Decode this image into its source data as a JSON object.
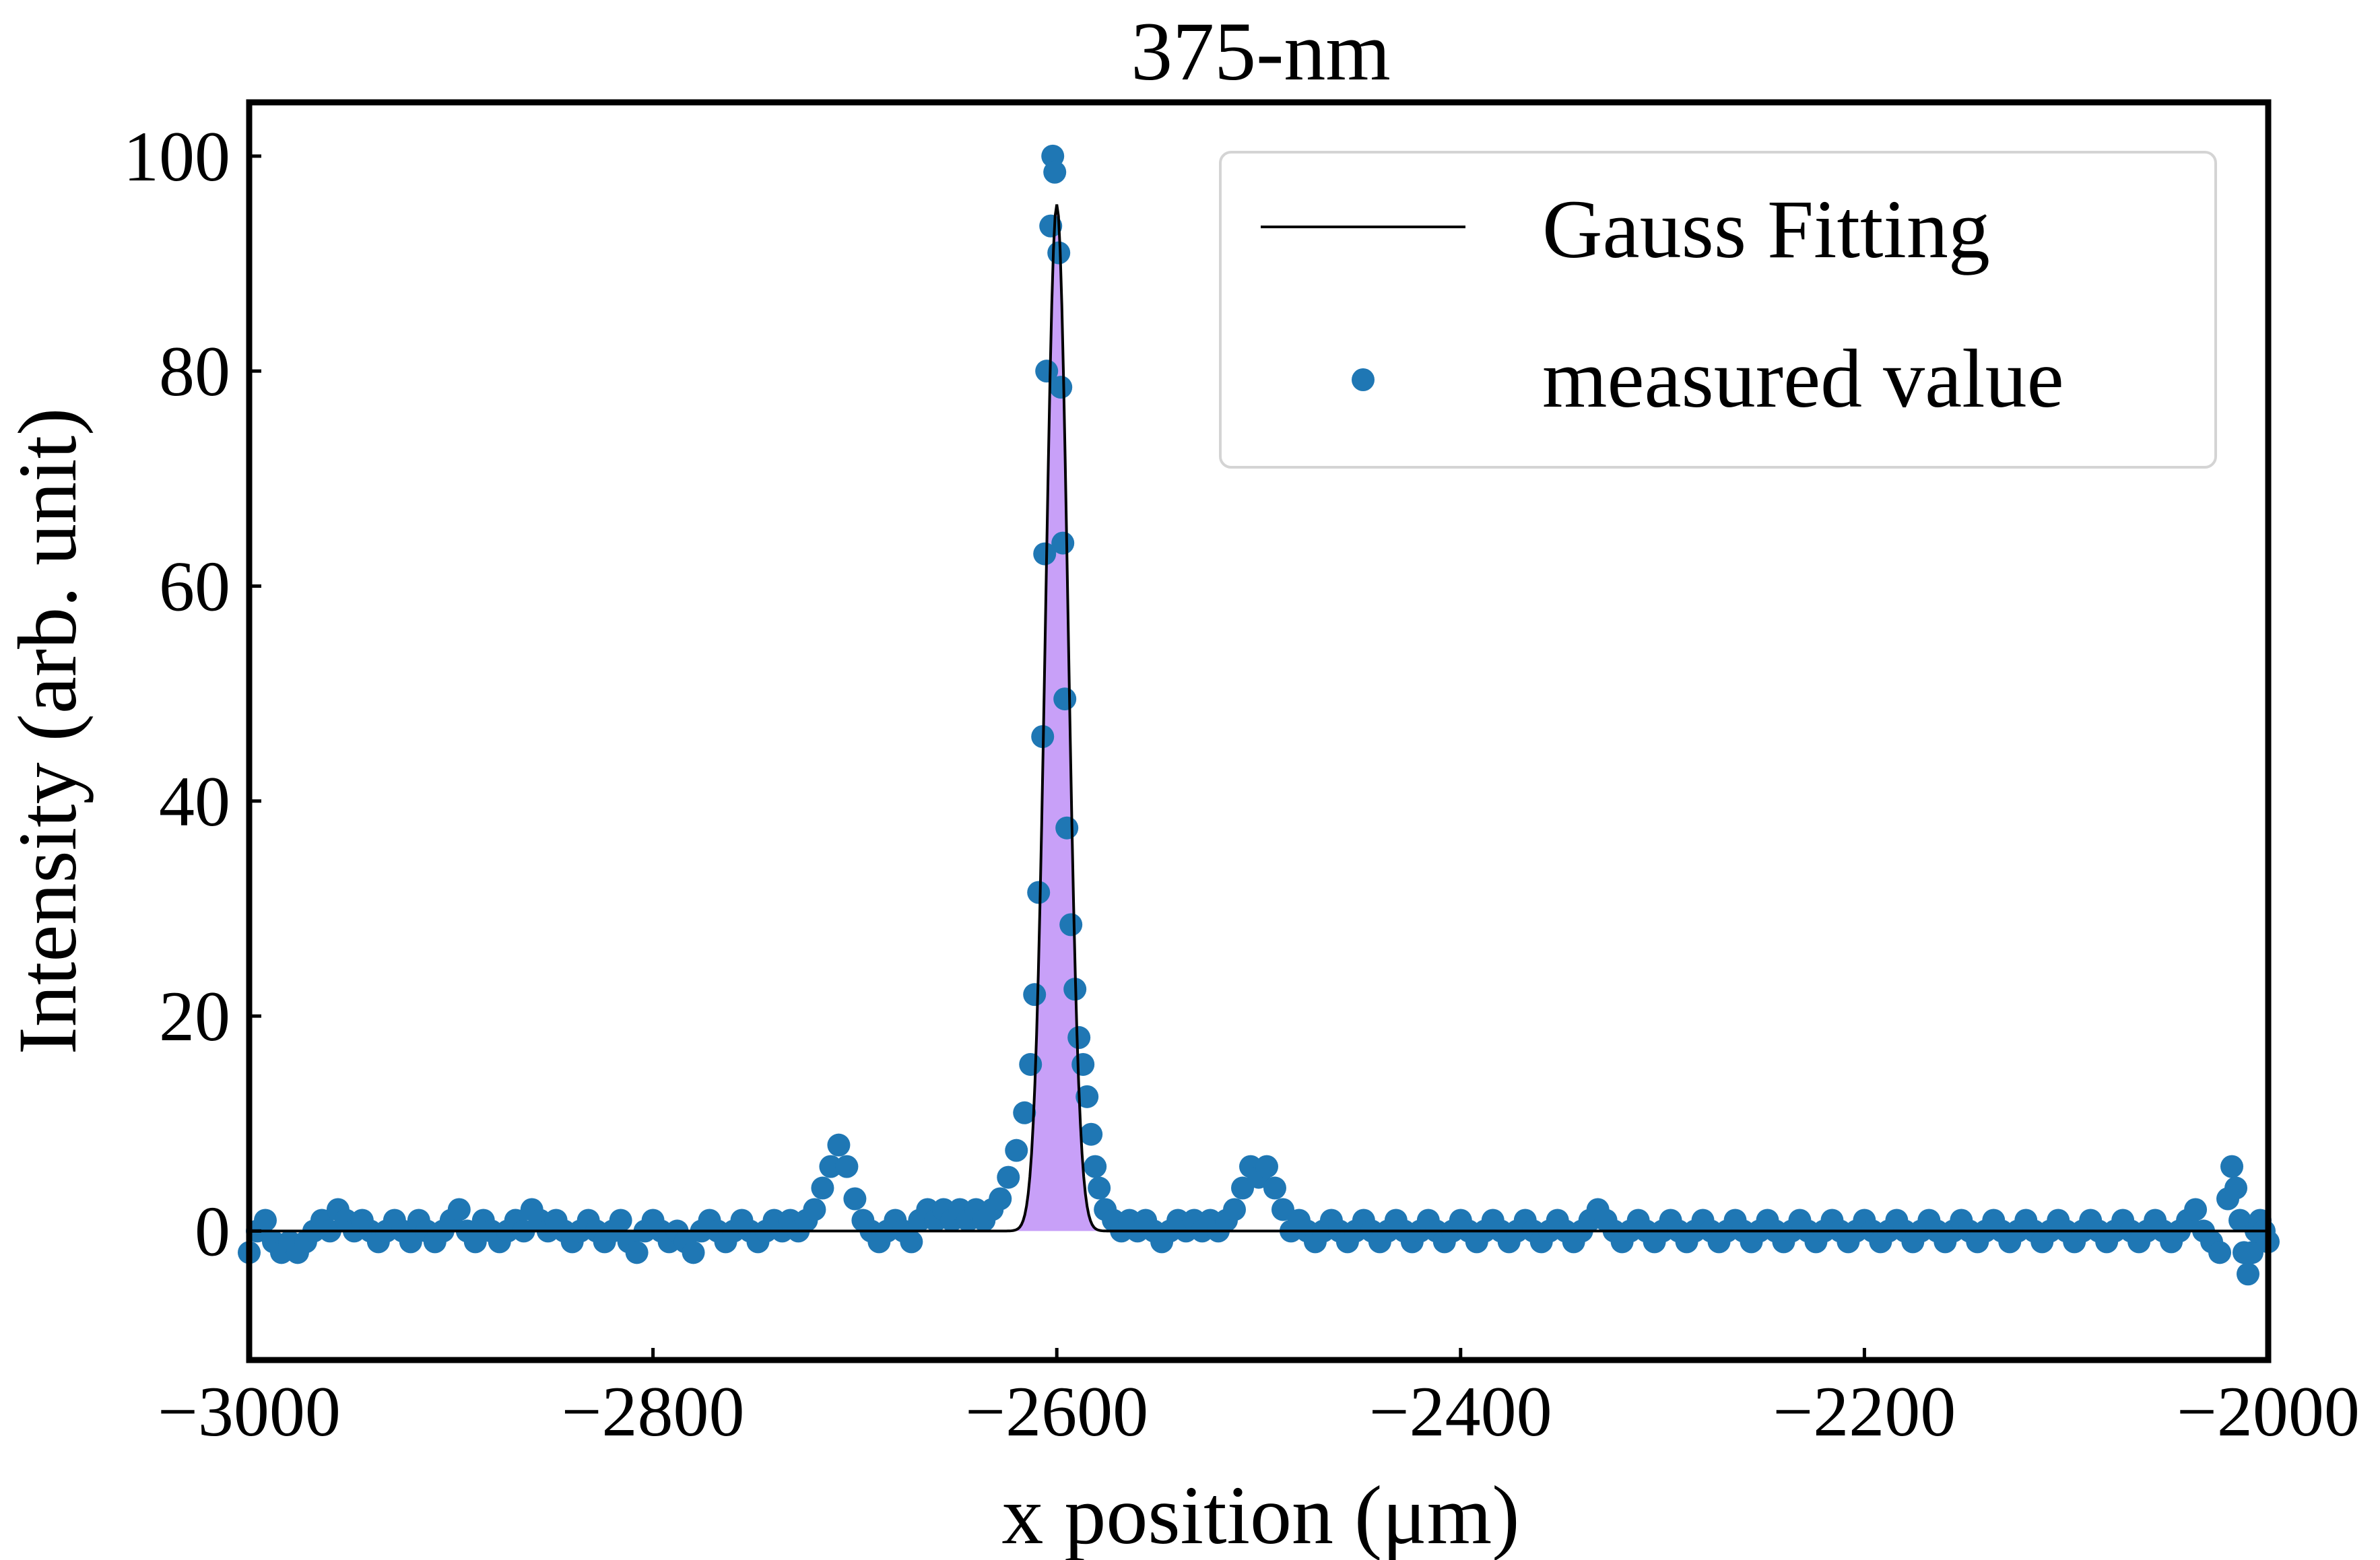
{
  "chart_data": {
    "type": "scatter",
    "title": "375-nm",
    "xlabel": "x position (μm)",
    "ylabel": "Intensity (arb. unit)",
    "xlim": [
      -3000,
      -2000
    ],
    "ylim": [
      -12,
      105
    ],
    "x_ticks": [
      {
        "value": -3000,
        "label": "−3000"
      },
      {
        "value": -2800,
        "label": "−2800"
      },
      {
        "value": -2600,
        "label": "−2600"
      },
      {
        "value": -2400,
        "label": "−2400"
      },
      {
        "value": -2200,
        "label": "−2200"
      },
      {
        "value": -2000,
        "label": "−2000"
      }
    ],
    "y_ticks": [
      {
        "value": 0,
        "label": "0"
      },
      {
        "value": 20,
        "label": "20"
      },
      {
        "value": 40,
        "label": "40"
      },
      {
        "value": 60,
        "label": "60"
      },
      {
        "value": 80,
        "label": "80"
      },
      {
        "value": 100,
        "label": "100"
      }
    ],
    "grid": false,
    "legend_position": "top-right",
    "series": [
      {
        "name": "Gauss Fitting",
        "kind": "line",
        "color": "#000000",
        "fill_color": "#c8a0f8",
        "gaussian": {
          "amplitude": 95.5,
          "center": -2600,
          "sigma": 5.5
        }
      },
      {
        "name": "measured value",
        "kind": "scatter",
        "color": "#1f77b4",
        "points": [
          [
            -3000,
            -2
          ],
          [
            -2996,
            0
          ],
          [
            -2992,
            1
          ],
          [
            -2988,
            -1
          ],
          [
            -2984,
            -2
          ],
          [
            -2980,
            -1
          ],
          [
            -2976,
            -2
          ],
          [
            -2972,
            -1
          ],
          [
            -2968,
            0
          ],
          [
            -2964,
            1
          ],
          [
            -2960,
            0
          ],
          [
            -2956,
            2
          ],
          [
            -2952,
            1
          ],
          [
            -2948,
            0
          ],
          [
            -2944,
            1
          ],
          [
            -2940,
            0
          ],
          [
            -2936,
            -1
          ],
          [
            -2932,
            0
          ],
          [
            -2928,
            1
          ],
          [
            -2924,
            0
          ],
          [
            -2920,
            -1
          ],
          [
            -2916,
            1
          ],
          [
            -2912,
            0
          ],
          [
            -2908,
            -1
          ],
          [
            -2904,
            0
          ],
          [
            -2900,
            1
          ],
          [
            -2896,
            2
          ],
          [
            -2892,
            0
          ],
          [
            -2888,
            -1
          ],
          [
            -2884,
            1
          ],
          [
            -2880,
            0
          ],
          [
            -2876,
            -1
          ],
          [
            -2872,
            0
          ],
          [
            -2868,
            1
          ],
          [
            -2864,
            0
          ],
          [
            -2860,
            2
          ],
          [
            -2856,
            1
          ],
          [
            -2852,
            0
          ],
          [
            -2848,
            1
          ],
          [
            -2844,
            0
          ],
          [
            -2840,
            -1
          ],
          [
            -2836,
            0
          ],
          [
            -2832,
            1
          ],
          [
            -2828,
            0
          ],
          [
            -2824,
            -1
          ],
          [
            -2820,
            0
          ],
          [
            -2816,
            1
          ],
          [
            -2812,
            -1
          ],
          [
            -2808,
            -2
          ],
          [
            -2804,
            0
          ],
          [
            -2800,
            1
          ],
          [
            -2796,
            0
          ],
          [
            -2792,
            -1
          ],
          [
            -2788,
            0
          ],
          [
            -2784,
            -1
          ],
          [
            -2780,
            -2
          ],
          [
            -2776,
            0
          ],
          [
            -2772,
            1
          ],
          [
            -2768,
            0
          ],
          [
            -2764,
            -1
          ],
          [
            -2760,
            0
          ],
          [
            -2756,
            1
          ],
          [
            -2752,
            0
          ],
          [
            -2748,
            -1
          ],
          [
            -2744,
            0
          ],
          [
            -2740,
            1
          ],
          [
            -2736,
            0
          ],
          [
            -2732,
            1
          ],
          [
            -2728,
            0
          ],
          [
            -2724,
            1
          ],
          [
            -2720,
            2
          ],
          [
            -2716,
            4
          ],
          [
            -2712,
            6
          ],
          [
            -2708,
            8
          ],
          [
            -2704,
            6
          ],
          [
            -2700,
            3
          ],
          [
            -2696,
            1
          ],
          [
            -2692,
            0
          ],
          [
            -2688,
            -1
          ],
          [
            -2684,
            0
          ],
          [
            -2680,
            1
          ],
          [
            -2676,
            0
          ],
          [
            -2672,
            -1
          ],
          [
            -2668,
            1
          ],
          [
            -2664,
            2
          ],
          [
            -2660,
            1
          ],
          [
            -2656,
            2
          ],
          [
            -2652,
            1
          ],
          [
            -2648,
            2
          ],
          [
            -2644,
            1
          ],
          [
            -2640,
            2
          ],
          [
            -2636,
            1
          ],
          [
            -2632,
            2
          ],
          [
            -2628,
            3
          ],
          [
            -2624,
            5
          ],
          [
            -2620,
            7.5
          ],
          [
            -2616,
            11
          ],
          [
            -2613,
            15.5
          ],
          [
            -2611,
            22
          ],
          [
            -2609,
            31.5
          ],
          [
            -2607,
            46
          ],
          [
            -2606,
            63
          ],
          [
            -2605,
            80
          ],
          [
            -2603,
            93.5
          ],
          [
            -2602,
            100
          ],
          [
            -2601,
            98.5
          ],
          [
            -2599,
            91
          ],
          [
            -2598,
            78.5
          ],
          [
            -2597,
            64
          ],
          [
            -2596,
            49.5
          ],
          [
            -2595,
            37.5
          ],
          [
            -2593,
            28.5
          ],
          [
            -2591,
            22.5
          ],
          [
            -2589,
            18
          ],
          [
            -2587,
            15.5
          ],
          [
            -2585,
            12.5
          ],
          [
            -2583,
            9
          ],
          [
            -2581,
            6
          ],
          [
            -2579,
            4
          ],
          [
            -2576,
            2
          ],
          [
            -2572,
            1
          ],
          [
            -2568,
            0
          ],
          [
            -2564,
            1
          ],
          [
            -2560,
            0
          ],
          [
            -2556,
            1
          ],
          [
            -2552,
            0
          ],
          [
            -2548,
            -1
          ],
          [
            -2544,
            0
          ],
          [
            -2540,
            1
          ],
          [
            -2536,
            0
          ],
          [
            -2532,
            1
          ],
          [
            -2528,
            0
          ],
          [
            -2524,
            1
          ],
          [
            -2520,
            0
          ],
          [
            -2516,
            1
          ],
          [
            -2512,
            2
          ],
          [
            -2508,
            4
          ],
          [
            -2504,
            6
          ],
          [
            -2500,
            5
          ],
          [
            -2496,
            6
          ],
          [
            -2492,
            4
          ],
          [
            -2488,
            2
          ],
          [
            -2484,
            0
          ],
          [
            -2480,
            1
          ],
          [
            -2476,
            0
          ],
          [
            -2472,
            -1
          ],
          [
            -2468,
            0
          ],
          [
            -2464,
            1
          ],
          [
            -2460,
            0
          ],
          [
            -2456,
            -1
          ],
          [
            -2452,
            0
          ],
          [
            -2448,
            1
          ],
          [
            -2444,
            0
          ],
          [
            -2440,
            -1
          ],
          [
            -2436,
            0
          ],
          [
            -2432,
            1
          ],
          [
            -2428,
            0
          ],
          [
            -2424,
            -1
          ],
          [
            -2420,
            0
          ],
          [
            -2416,
            1
          ],
          [
            -2412,
            0
          ],
          [
            -2408,
            -1
          ],
          [
            -2404,
            0
          ],
          [
            -2400,
            1
          ],
          [
            -2396,
            0
          ],
          [
            -2392,
            -1
          ],
          [
            -2388,
            0
          ],
          [
            -2384,
            1
          ],
          [
            -2380,
            0
          ],
          [
            -2376,
            -1
          ],
          [
            -2372,
            0
          ],
          [
            -2368,
            1
          ],
          [
            -2364,
            0
          ],
          [
            -2360,
            -1
          ],
          [
            -2356,
            0
          ],
          [
            -2352,
            1
          ],
          [
            -2348,
            0
          ],
          [
            -2344,
            -1
          ],
          [
            -2340,
            0
          ],
          [
            -2336,
            1
          ],
          [
            -2332,
            2
          ],
          [
            -2328,
            1
          ],
          [
            -2324,
            0
          ],
          [
            -2320,
            -1
          ],
          [
            -2316,
            0
          ],
          [
            -2312,
            1
          ],
          [
            -2308,
            0
          ],
          [
            -2304,
            -1
          ],
          [
            -2300,
            0
          ],
          [
            -2296,
            1
          ],
          [
            -2292,
            0
          ],
          [
            -2288,
            -1
          ],
          [
            -2284,
            0
          ],
          [
            -2280,
            1
          ],
          [
            -2276,
            0
          ],
          [
            -2272,
            -1
          ],
          [
            -2268,
            0
          ],
          [
            -2264,
            1
          ],
          [
            -2260,
            0
          ],
          [
            -2256,
            -1
          ],
          [
            -2252,
            0
          ],
          [
            -2248,
            1
          ],
          [
            -2244,
            0
          ],
          [
            -2240,
            -1
          ],
          [
            -2236,
            0
          ],
          [
            -2232,
            1
          ],
          [
            -2228,
            0
          ],
          [
            -2224,
            -1
          ],
          [
            -2220,
            0
          ],
          [
            -2216,
            1
          ],
          [
            -2212,
            0
          ],
          [
            -2208,
            -1
          ],
          [
            -2204,
            0
          ],
          [
            -2200,
            1
          ],
          [
            -2196,
            0
          ],
          [
            -2192,
            -1
          ],
          [
            -2188,
            0
          ],
          [
            -2184,
            1
          ],
          [
            -2180,
            0
          ],
          [
            -2176,
            -1
          ],
          [
            -2172,
            0
          ],
          [
            -2168,
            1
          ],
          [
            -2164,
            0
          ],
          [
            -2160,
            -1
          ],
          [
            -2156,
            0
          ],
          [
            -2152,
            1
          ],
          [
            -2148,
            0
          ],
          [
            -2144,
            -1
          ],
          [
            -2140,
            0
          ],
          [
            -2136,
            1
          ],
          [
            -2132,
            0
          ],
          [
            -2128,
            -1
          ],
          [
            -2124,
            0
          ],
          [
            -2120,
            1
          ],
          [
            -2116,
            0
          ],
          [
            -2112,
            -1
          ],
          [
            -2108,
            0
          ],
          [
            -2104,
            1
          ],
          [
            -2100,
            0
          ],
          [
            -2096,
            -1
          ],
          [
            -2092,
            0
          ],
          [
            -2088,
            1
          ],
          [
            -2084,
            0
          ],
          [
            -2080,
            -1
          ],
          [
            -2076,
            0
          ],
          [
            -2072,
            1
          ],
          [
            -2068,
            0
          ],
          [
            -2064,
            -1
          ],
          [
            -2060,
            0
          ],
          [
            -2056,
            1
          ],
          [
            -2052,
            0
          ],
          [
            -2048,
            -1
          ],
          [
            -2044,
            0
          ],
          [
            -2040,
            1
          ],
          [
            -2036,
            2
          ],
          [
            -2032,
            0
          ],
          [
            -2028,
            -1
          ],
          [
            -2024,
            -2
          ],
          [
            -2020,
            3
          ],
          [
            -2018,
            6
          ],
          [
            -2016,
            4
          ],
          [
            -2014,
            1
          ],
          [
            -2012,
            -2
          ],
          [
            -2010,
            -4
          ],
          [
            -2008,
            -2
          ],
          [
            -2006,
            0
          ],
          [
            -2004,
            1
          ],
          [
            -2002,
            0
          ],
          [
            -2000,
            -1
          ]
        ]
      }
    ]
  }
}
